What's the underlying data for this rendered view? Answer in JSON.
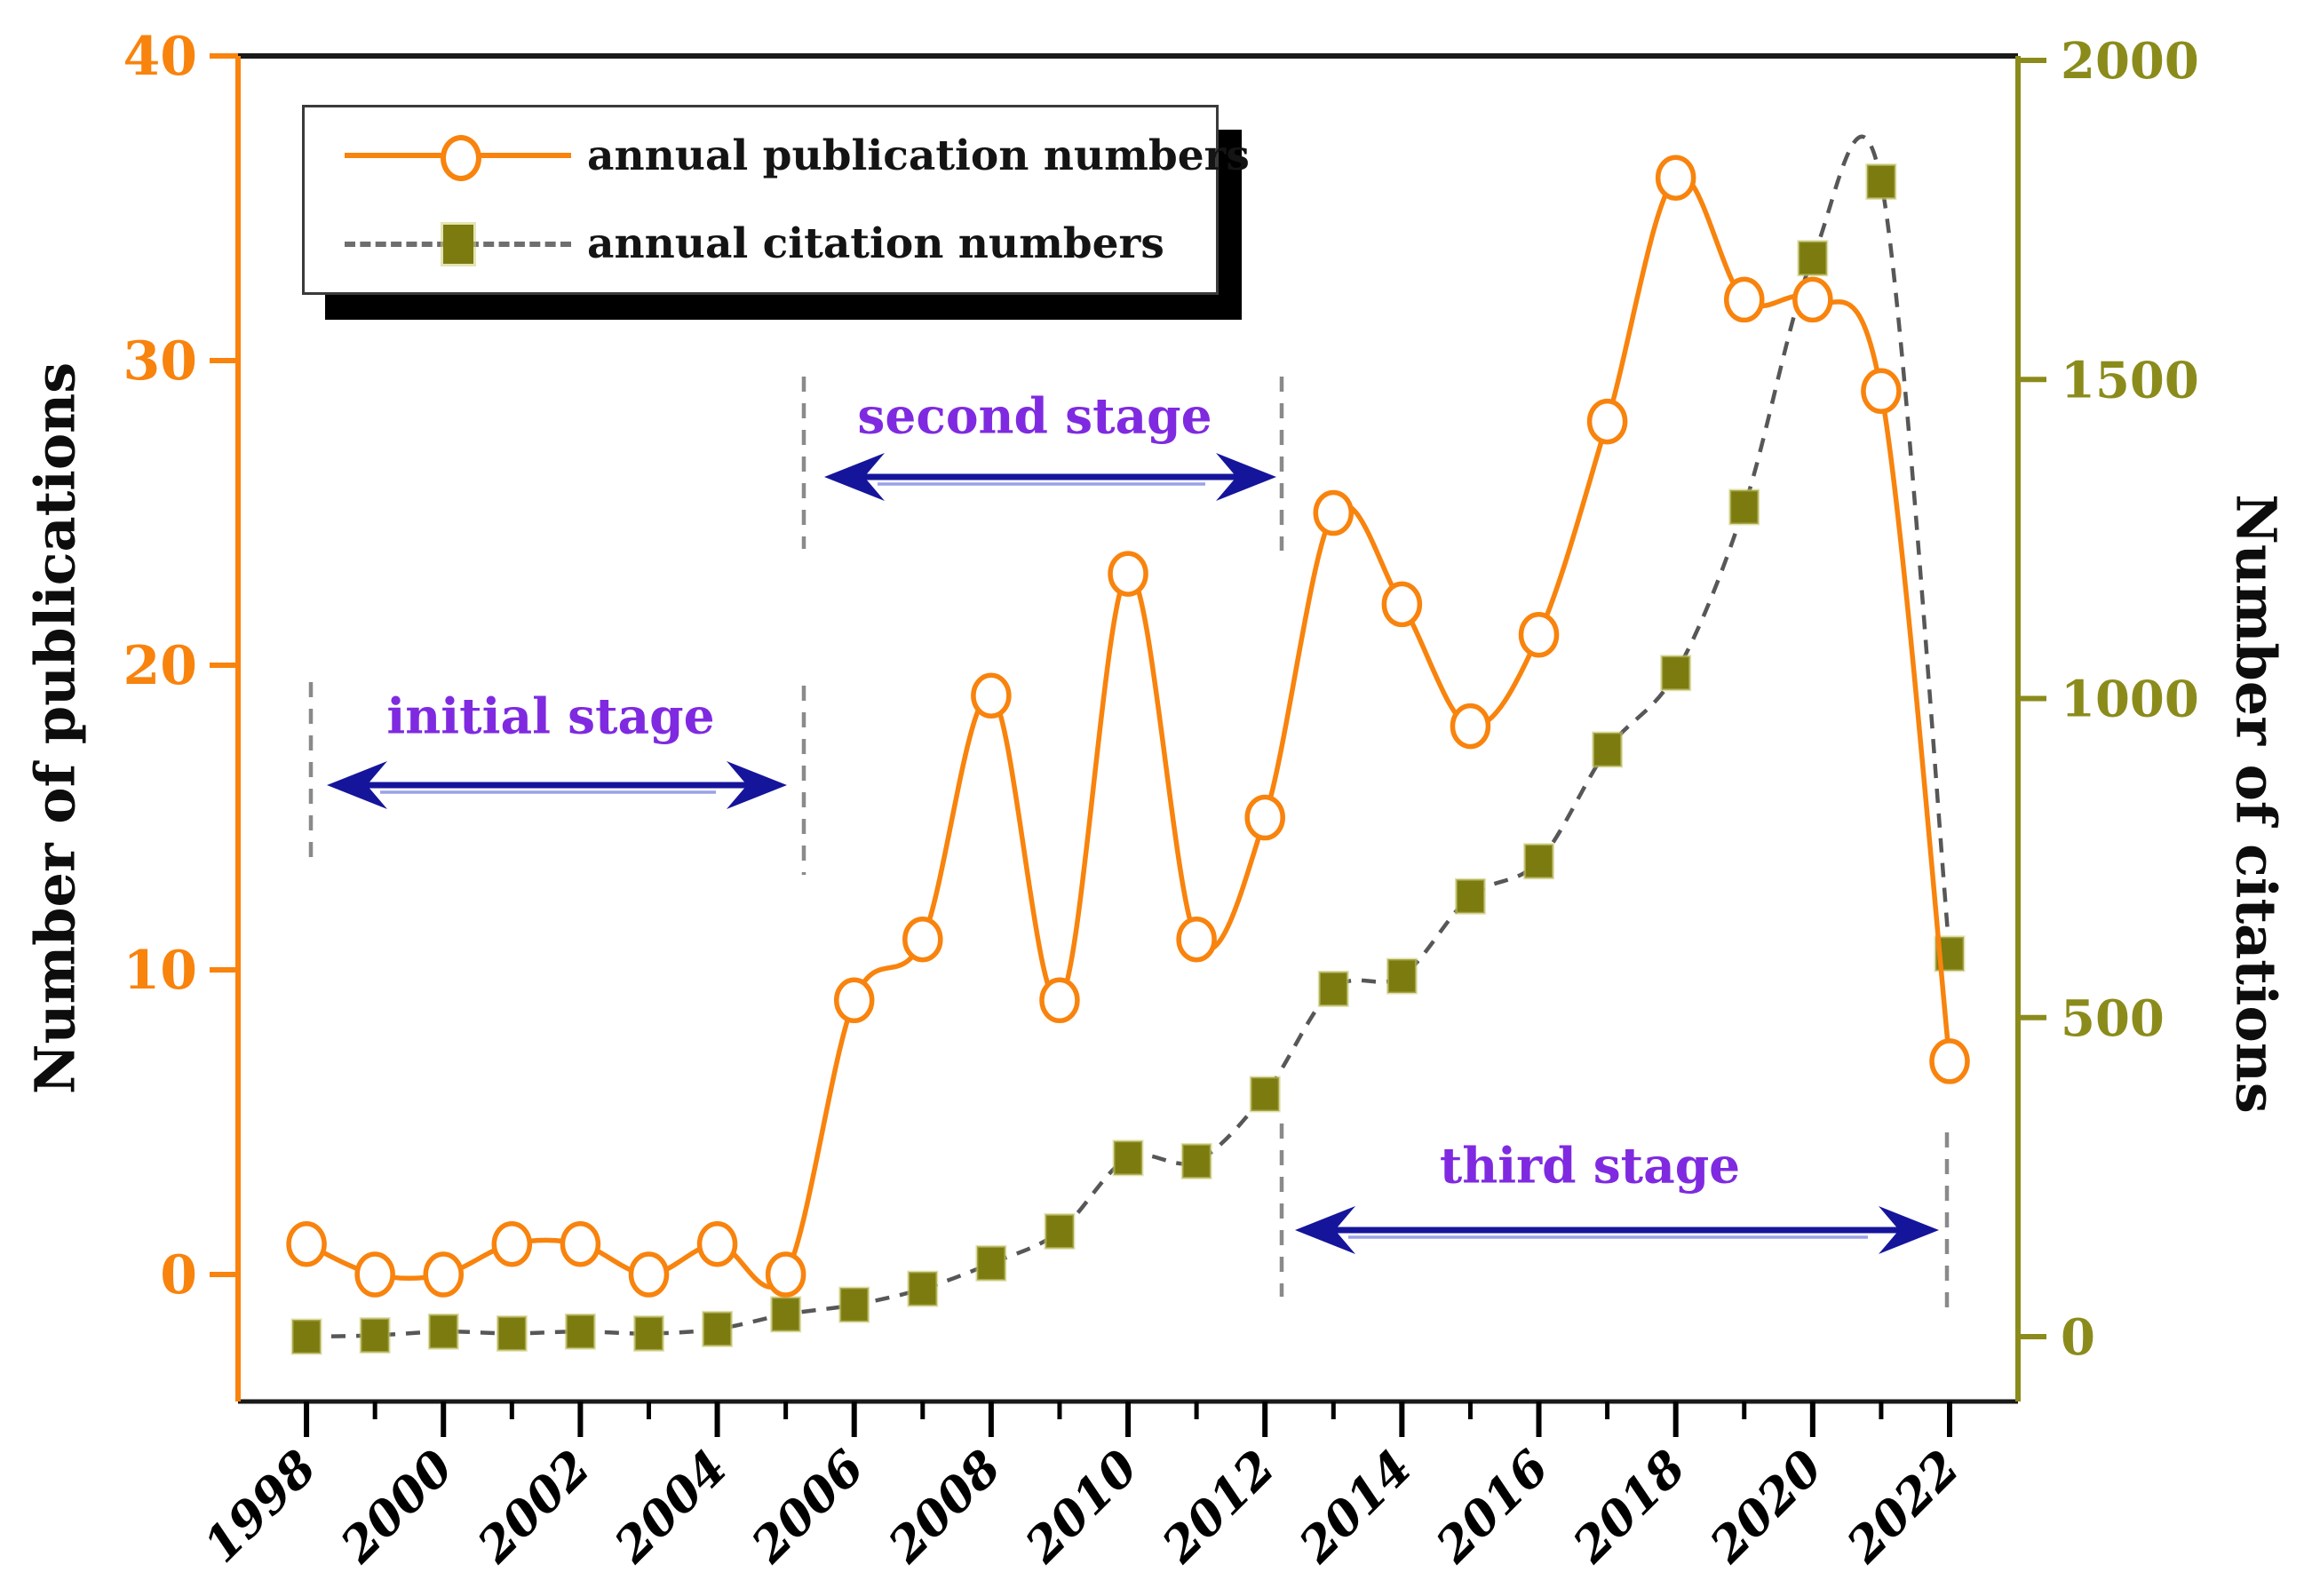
{
  "legend": {
    "publications": "annual publication numbers",
    "citations": "annual citation numbers"
  },
  "axes": {
    "left": {
      "title": "Number of publications",
      "ticks": [
        0,
        10,
        20,
        30,
        40
      ]
    },
    "right": {
      "title": "Number of citations",
      "ticks": [
        0,
        500,
        1000,
        1500,
        2000
      ]
    },
    "x": {
      "major_tick_years": [
        1998,
        2000,
        2002,
        2004,
        2006,
        2008,
        2010,
        2012,
        2014,
        2016,
        2018,
        2020,
        2022
      ],
      "minor_tick_years": [
        1999,
        2001,
        2003,
        2005,
        2007,
        2009,
        2011,
        2013,
        2015,
        2017,
        2019,
        2021
      ]
    }
  },
  "annotations": {
    "stages": [
      {
        "label": "initial stage",
        "from_year": 1998,
        "to_year": 2005
      },
      {
        "label": "second stage",
        "from_year": 2005,
        "to_year": 2012
      },
      {
        "label": "third stage",
        "from_year": 2012,
        "to_year": 2022
      }
    ]
  },
  "chart_data": {
    "type": "line",
    "title": "",
    "x": [
      1998,
      1999,
      2000,
      2001,
      2002,
      2003,
      2004,
      2005,
      2006,
      2007,
      2008,
      2009,
      2010,
      2011,
      2012,
      2013,
      2014,
      2015,
      2016,
      2017,
      2018,
      2019,
      2020,
      2021,
      2022
    ],
    "series": [
      {
        "name": "annual publication numbers",
        "axis": "left",
        "marker": "open-circle",
        "values": [
          1,
          0,
          0,
          1,
          1,
          0,
          1,
          0,
          9,
          11,
          19,
          9,
          23,
          11,
          15,
          25,
          22,
          18,
          21,
          28,
          36,
          32,
          32,
          29,
          7
        ]
      },
      {
        "name": "annual citation numbers",
        "axis": "right",
        "marker": "filled-square",
        "values": [
          0,
          2,
          8,
          5,
          8,
          5,
          12,
          35,
          50,
          75,
          115,
          165,
          280,
          275,
          380,
          545,
          565,
          690,
          745,
          920,
          1040,
          1300,
          1690,
          1810,
          600
        ]
      }
    ],
    "xlabel": "",
    "ylabel_left": "Number of publications",
    "ylabel_right": "Number of citations",
    "ylim_left": [
      0,
      40
    ],
    "ylim_right": [
      0,
      2000
    ],
    "xlim": [
      1997,
      2023
    ],
    "grid": false,
    "legend_position": "top-left"
  },
  "colors": {
    "publication_orange": "#F8830D",
    "citation_olive": "#7B7B10",
    "citation_axis_olive": "#8B8B1B",
    "citation_dash_line": "#575757",
    "stage_purple": "#7F2AE0",
    "arrow_navy": "#15159B",
    "arrow_light": "#9aa2e6",
    "stage_dash_gray": "#8a8a8a",
    "frame_black": "#1a1a1a"
  }
}
